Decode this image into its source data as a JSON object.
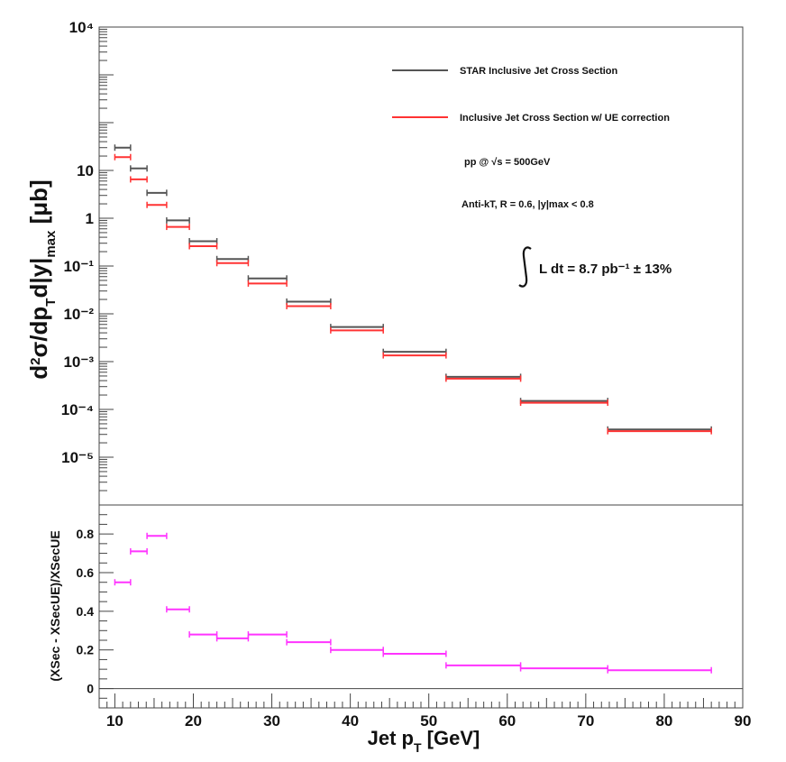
{
  "chart_data": [
    {
      "type": "scatter",
      "panel": "upper",
      "title": "",
      "ylabel": "d²σ/dp_T d|y|_max [μb]",
      "y_scale": "log",
      "ylim": [
        1e-06,
        10000
      ],
      "xlim": [
        8,
        90
      ],
      "y_tick_labels": [
        "10⁻⁵",
        "10⁻⁴",
        "10⁻³",
        "10⁻²",
        "10⁻¹",
        "1",
        "10",
        "10⁴"
      ],
      "grid": false,
      "legend_position": "top-right",
      "series": [
        {
          "name": "STAR Inclusive Jet Cross Section",
          "color": "#555555",
          "x_low": [
            10.0,
            12.0,
            14.1,
            16.6,
            19.5,
            23.0,
            27.0,
            31.9,
            37.5,
            44.2,
            52.2,
            61.7,
            72.8
          ],
          "x_high": [
            12.0,
            14.1,
            16.6,
            19.5,
            23.0,
            27.0,
            31.9,
            37.5,
            44.2,
            52.2,
            61.7,
            72.8,
            86.0
          ],
          "y": [
            30,
            11,
            3.4,
            0.9,
            0.33,
            0.14,
            0.055,
            0.018,
            0.0053,
            0.0016,
            0.00048,
            0.00015,
            3.8e-05
          ]
        },
        {
          "name": "Inclusive Jet Cross Section w/ UE correction",
          "color": "#ff3333",
          "x_low": [
            10.0,
            12.0,
            14.1,
            16.6,
            19.5,
            23.0,
            27.0,
            31.9,
            37.5,
            44.2,
            52.2,
            61.7,
            72.8
          ],
          "x_high": [
            12.0,
            14.1,
            16.6,
            19.5,
            23.0,
            27.0,
            31.9,
            37.5,
            44.2,
            52.2,
            61.7,
            72.8,
            86.0
          ],
          "y": [
            19,
            6.5,
            1.9,
            0.66,
            0.26,
            0.115,
            0.043,
            0.0145,
            0.0045,
            0.00135,
            0.00044,
            0.000138,
            3.5e-05
          ]
        }
      ],
      "annotations": {
        "energy": "pp @  √s = 500GeV",
        "algo": "Anti-kT, R = 0.6,  |y|max < 0.8",
        "lumi": "L dt  = 8.7 pb⁻¹ ± 13%"
      }
    },
    {
      "type": "scatter",
      "panel": "lower",
      "ylabel": "(XSec - XSecUE)/XSecUE",
      "xlabel": "Jet pT [GeV]",
      "xlim": [
        8,
        90
      ],
      "ylim": [
        -0.1,
        0.95
      ],
      "x_tick_labels": [
        "10",
        "20",
        "30",
        "40",
        "50",
        "60",
        "70",
        "80",
        "90"
      ],
      "y_tick_labels": [
        "0",
        "0.2",
        "0.4",
        "0.6",
        "0.8"
      ],
      "series": [
        {
          "color": "#ff33ff",
          "x_low": [
            10.0,
            12.0,
            14.1,
            16.6,
            19.5,
            23.0,
            27.0,
            31.9,
            37.5,
            44.2,
            52.2,
            61.7,
            72.8
          ],
          "x_high": [
            12.0,
            14.1,
            16.6,
            19.5,
            23.0,
            27.0,
            31.9,
            37.5,
            44.2,
            52.2,
            61.7,
            72.8,
            86.0
          ],
          "y": [
            0.55,
            0.71,
            0.79,
            0.41,
            0.28,
            0.26,
            0.28,
            0.24,
            0.2,
            0.18,
            0.12,
            0.105,
            0.095
          ]
        }
      ]
    }
  ]
}
